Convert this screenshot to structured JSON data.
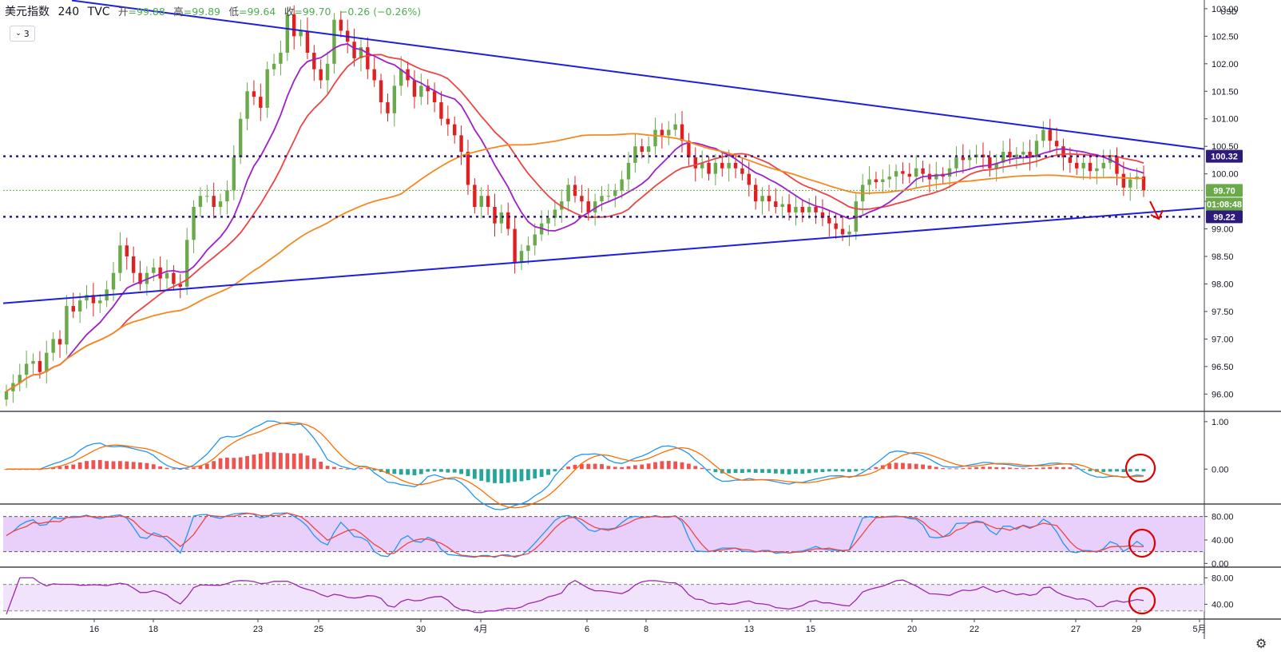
{
  "header": {
    "symbol": "美元指数",
    "interval": "240",
    "source": "TVC",
    "open_label": "开",
    "open": "=99.88",
    "high_label": "高",
    "high": "=99.89",
    "low_label": "低",
    "low": "=99.64",
    "close_label": "收",
    "close": "=99.70",
    "change": "−0.26 (−0.26%)"
  },
  "indicator_toggle": "3",
  "currency": "USD",
  "price_tags": {
    "resistance": "100.32",
    "last": "99.70",
    "countdown": "01:08:48",
    "support": "99.22"
  },
  "colors": {
    "up": "#6aaa4a",
    "down": "#e02020",
    "ma_fast": "#a020c8",
    "ma_mid": "#ef4444",
    "ma_slow": "#f5891f",
    "trendline": "#1e1edc",
    "level": "#2d1a7a",
    "macd_line": "#2196f3",
    "signal_line": "#ff6d00",
    "hist_pos": "#ef5350",
    "hist_neg": "#26a69a",
    "band_fill": "#e9d0fb",
    "rsi_line": "#9c27b0",
    "annotation": "#e00000"
  },
  "chart_data": [
    {
      "type": "candlestick",
      "pane": "price",
      "title": "美元指数 · 240 · TVC",
      "ylim": [
        95.7,
        103.1
      ],
      "y_ticks": [
        "96.00",
        "96.50",
        "97.00",
        "97.50",
        "98.00",
        "98.50",
        "99.00",
        "99.50",
        "100.00",
        "100.50",
        "101.00",
        "101.50",
        "102.00",
        "102.50",
        "103.00"
      ],
      "x_ticks": [
        "16",
        "18",
        "23",
        "25",
        "30",
        "4月",
        "6",
        "8",
        "13",
        "15",
        "20",
        "22",
        "27",
        "29",
        "5月"
      ],
      "closes": [
        96.05,
        96.2,
        96.35,
        96.55,
        96.6,
        96.4,
        96.75,
        97.0,
        96.9,
        97.6,
        97.5,
        97.7,
        97.8,
        97.65,
        97.7,
        97.9,
        98.2,
        98.7,
        98.5,
        98.2,
        98.0,
        98.2,
        98.3,
        98.1,
        98.2,
        98.0,
        97.95,
        98.8,
        99.4,
        99.6,
        99.6,
        99.4,
        99.5,
        99.7,
        100.3,
        101.0,
        101.5,
        101.4,
        101.2,
        101.9,
        102.0,
        102.2,
        102.9,
        102.5,
        102.6,
        102.2,
        101.9,
        101.7,
        102.0,
        102.8,
        102.6,
        102.4,
        102.1,
        102.3,
        101.9,
        101.7,
        101.3,
        101.1,
        101.6,
        101.9,
        101.7,
        101.4,
        101.6,
        101.5,
        101.3,
        101.0,
        100.9,
        100.7,
        100.4,
        99.8,
        99.4,
        99.6,
        99.4,
        99.1,
        99.3,
        99.0,
        98.4,
        98.6,
        98.7,
        98.9,
        99.1,
        99.2,
        99.35,
        99.5,
        99.8,
        99.6,
        99.5,
        99.3,
        99.5,
        99.6,
        99.6,
        99.7,
        99.9,
        100.2,
        100.5,
        100.4,
        100.5,
        100.8,
        100.7,
        100.8,
        100.9,
        100.6,
        100.3,
        100.1,
        100.2,
        100.0,
        100.2,
        100.1,
        100.2,
        100.1,
        100.0,
        99.8,
        99.5,
        99.6,
        99.5,
        99.4,
        99.45,
        99.3,
        99.4,
        99.3,
        99.4,
        99.3,
        99.2,
        99.1,
        99.0,
        98.9,
        98.95,
        99.5,
        99.8,
        99.9,
        99.85,
        99.9,
        99.95,
        100.05,
        100.0,
        99.95,
        100.1,
        100.0,
        99.9,
        100.0,
        99.95,
        100.1,
        100.3,
        100.25,
        100.3,
        100.35,
        100.3,
        100.1,
        100.2,
        100.4,
        100.3,
        100.35,
        100.4,
        100.3,
        100.6,
        100.8,
        100.6,
        100.5,
        100.3,
        100.2,
        100.1,
        100.2,
        100.05,
        100.1,
        100.2,
        100.3,
        100.0,
        99.75,
        99.9,
        99.95,
        99.7
      ]
    },
    {
      "type": "line",
      "pane": "macd",
      "y_ticks": [
        "1.00",
        "0.00"
      ],
      "ylim": [
        -0.72,
        1.2
      ],
      "series": []
    },
    {
      "type": "line",
      "pane": "stoch",
      "y_ticks": [
        "80.00",
        "40.00",
        "0.00"
      ],
      "ylim": [
        -5,
        100
      ],
      "series": []
    },
    {
      "type": "line",
      "pane": "rsi",
      "y_ticks": [
        "80.00",
        "40.00"
      ],
      "ylim": [
        20,
        95
      ],
      "series": []
    }
  ]
}
